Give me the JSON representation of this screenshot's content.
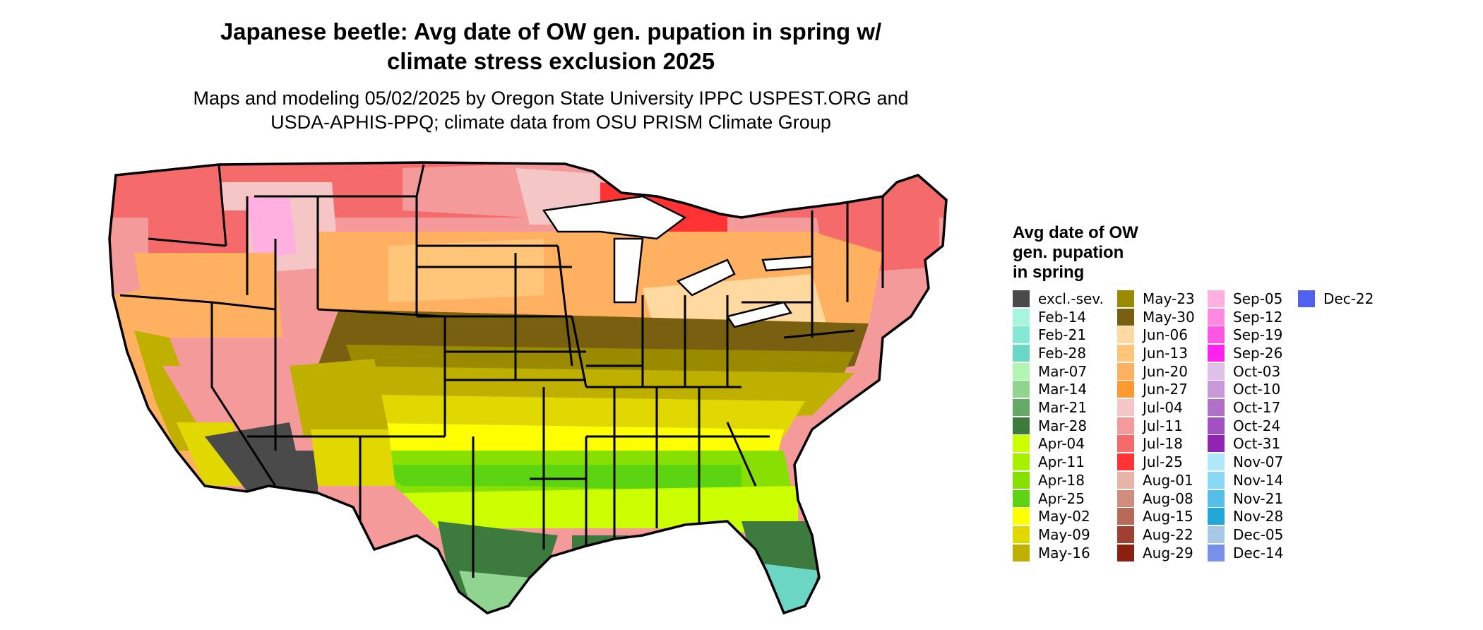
{
  "title_line1": "Japanese beetle: Avg date of OW gen. pupation in spring w/",
  "title_line2": "climate stress exclusion 2025",
  "subtitle_line1": "Maps and modeling 05/02/2025 by Oregon State University IPPC USPEST.ORG and",
  "subtitle_line2": "USDA-APHIS-PPQ; climate data from OSU PRISM Climate Group",
  "legend": {
    "title_line1": "Avg date of OW",
    "title_line2": "gen. pupation",
    "title_line3": "in spring",
    "columns": [
      [
        {
          "label": "excl.-sev.",
          "color": "#4a4a4a"
        },
        {
          "label": "Feb-14",
          "color": "#a6f5dc"
        },
        {
          "label": "Feb-21",
          "color": "#86e8d2"
        },
        {
          "label": "Feb-28",
          "color": "#6bd6c4"
        },
        {
          "label": "Mar-07",
          "color": "#b3f5b3"
        },
        {
          "label": "Mar-14",
          "color": "#8fd48f"
        },
        {
          "label": "Mar-21",
          "color": "#66a866"
        },
        {
          "label": "Mar-28",
          "color": "#3d7a3d"
        },
        {
          "label": "Apr-04",
          "color": "#ccff00"
        },
        {
          "label": "Apr-11",
          "color": "#a8f000"
        },
        {
          "label": "Apr-18",
          "color": "#88e000"
        },
        {
          "label": "Apr-25",
          "color": "#5cd411"
        },
        {
          "label": "May-02",
          "color": "#ffff00"
        },
        {
          "label": "May-09",
          "color": "#e0d800"
        },
        {
          "label": "May-16",
          "color": "#bfb000"
        }
      ],
      [
        {
          "label": "May-23",
          "color": "#9a8a00"
        },
        {
          "label": "May-30",
          "color": "#786010"
        },
        {
          "label": "Jun-06",
          "color": "#ffd9a0"
        },
        {
          "label": "Jun-13",
          "color": "#ffc67a"
        },
        {
          "label": "Jun-20",
          "color": "#ffb060"
        },
        {
          "label": "Jun-27",
          "color": "#ff9a33"
        },
        {
          "label": "Jul-04",
          "color": "#f5c6c6"
        },
        {
          "label": "Jul-11",
          "color": "#f59a9a"
        },
        {
          "label": "Jul-18",
          "color": "#f56a6a"
        },
        {
          "label": "Jul-25",
          "color": "#ff3333"
        },
        {
          "label": "Aug-01",
          "color": "#e8b4a8"
        },
        {
          "label": "Aug-08",
          "color": "#d08c7c"
        },
        {
          "label": "Aug-15",
          "color": "#b86a5a"
        },
        {
          "label": "Aug-22",
          "color": "#a04030"
        },
        {
          "label": "Aug-29",
          "color": "#8a2010"
        }
      ],
      [
        {
          "label": "Sep-05",
          "color": "#ffb0e0"
        },
        {
          "label": "Sep-12",
          "color": "#ff88e0"
        },
        {
          "label": "Sep-19",
          "color": "#ff55e5"
        },
        {
          "label": "Sep-26",
          "color": "#ff22ee"
        },
        {
          "label": "Oct-03",
          "color": "#e0c0e8"
        },
        {
          "label": "Oct-10",
          "color": "#c898d8"
        },
        {
          "label": "Oct-17",
          "color": "#b070c8"
        },
        {
          "label": "Oct-24",
          "color": "#a050c0"
        },
        {
          "label": "Oct-31",
          "color": "#8f25b0"
        },
        {
          "label": "Nov-07",
          "color": "#b0e8ff"
        },
        {
          "label": "Nov-14",
          "color": "#88d8f5"
        },
        {
          "label": "Nov-21",
          "color": "#55bfe8"
        },
        {
          "label": "Nov-28",
          "color": "#22a8d8"
        },
        {
          "label": "Dec-05",
          "color": "#a8c8e8"
        },
        {
          "label": "Dec-14",
          "color": "#7890e8"
        }
      ],
      [
        {
          "label": "Dec-22",
          "color": "#5060f0"
        }
      ]
    ]
  }
}
